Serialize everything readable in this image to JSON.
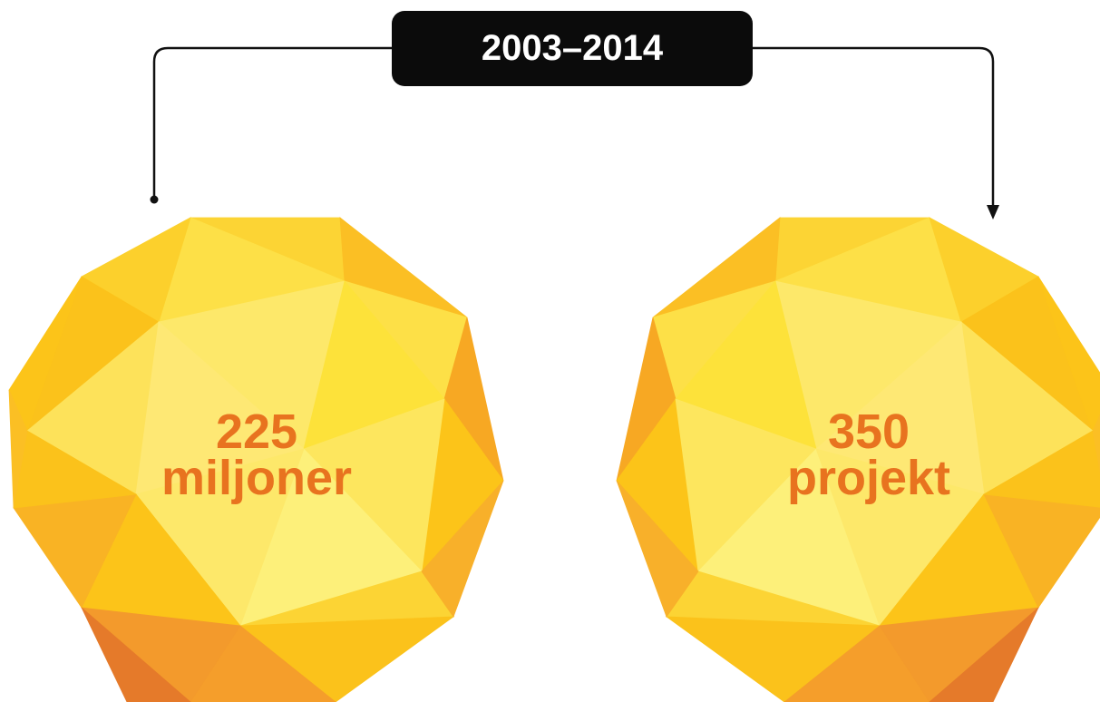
{
  "label": "2003–2014",
  "items": [
    {
      "number": "225",
      "unit": "miljoner"
    },
    {
      "number": "350",
      "unit": "projekt"
    }
  ]
}
